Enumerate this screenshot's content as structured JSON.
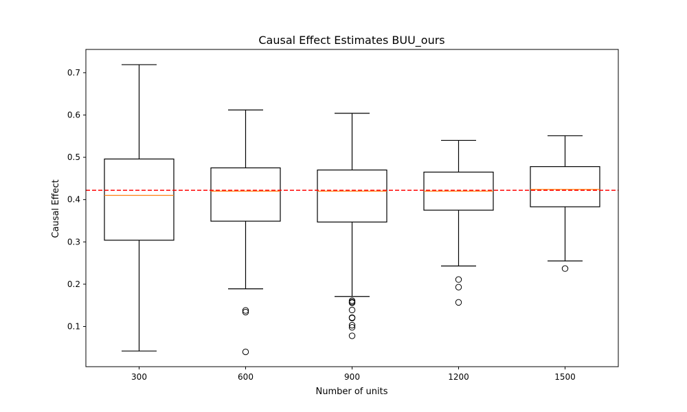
{
  "chart_data": {
    "type": "box",
    "title": "Causal Effect Estimates BUU_ours",
    "xlabel": "Number of units",
    "ylabel": "Causal Effect",
    "categories": [
      "300",
      "600",
      "900",
      "1200",
      "1500"
    ],
    "ylim": [
      0.005,
      0.755
    ],
    "yticks": [
      0.1,
      0.2,
      0.3,
      0.4,
      0.5,
      0.6,
      0.7
    ],
    "ytick_labels": [
      "0.1",
      "0.2",
      "0.3",
      "0.4",
      "0.5",
      "0.6",
      "0.7"
    ],
    "reference_line": {
      "value": 0.422,
      "color": "#ff0000",
      "style": "dashed"
    },
    "colors": {
      "box": "#000000",
      "median": "#ff7f0e",
      "reference": "#ff0000"
    },
    "boxes": [
      {
        "category": "300",
        "whisker_low": 0.042,
        "q1": 0.304,
        "median": 0.41,
        "q3": 0.496,
        "whisker_high": 0.719,
        "outliers": []
      },
      {
        "category": "600",
        "whisker_low": 0.189,
        "q1": 0.349,
        "median": 0.42,
        "q3": 0.475,
        "whisker_high": 0.612,
        "outliers": [
          0.138,
          0.134,
          0.04
        ]
      },
      {
        "category": "900",
        "whisker_low": 0.171,
        "q1": 0.347,
        "median": 0.42,
        "q3": 0.47,
        "whisker_high": 0.604,
        "outliers": [
          0.161,
          0.158,
          0.156,
          0.139,
          0.121,
          0.12,
          0.103,
          0.098,
          0.078
        ]
      },
      {
        "category": "1200",
        "whisker_low": 0.243,
        "q1": 0.375,
        "median": 0.42,
        "q3": 0.465,
        "whisker_high": 0.54,
        "outliers": [
          0.211,
          0.193,
          0.157
        ]
      },
      {
        "category": "1500",
        "whisker_low": 0.255,
        "q1": 0.383,
        "median": 0.424,
        "q3": 0.478,
        "whisker_high": 0.551,
        "outliers": [
          0.237
        ]
      }
    ]
  }
}
